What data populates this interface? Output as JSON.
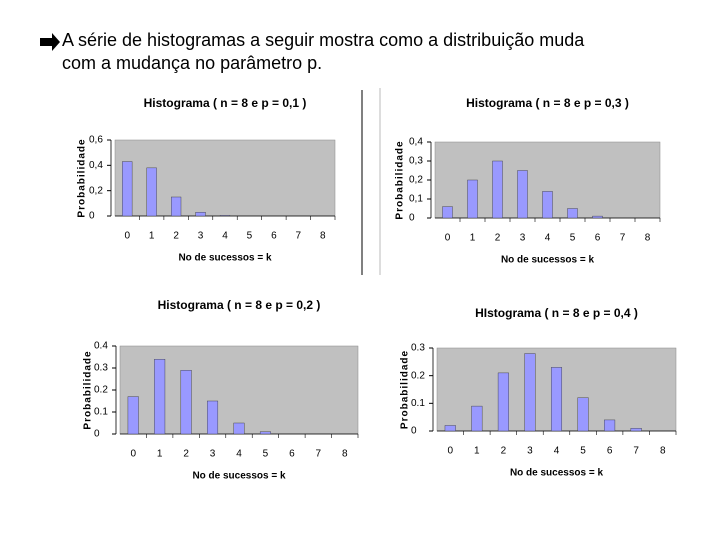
{
  "heading": [
    "A série de histogramas a seguir mostra como a distribuição muda",
    "com a mudança no parâmetro p."
  ],
  "chart_data": [
    {
      "type": "bar",
      "title": "Histograma ( n = 8 e p = 0,1 )",
      "x_label": "No de sucessos = k",
      "y_label": "Probabilidade",
      "categories": [
        "0",
        "1",
        "2",
        "3",
        "4",
        "5",
        "6",
        "7",
        "8"
      ],
      "values": [
        0.43,
        0.38,
        0.15,
        0.03,
        0.005,
        0,
        0,
        0,
        0
      ],
      "color": "#9999ff",
      "ylim": [
        0,
        0.6
      ],
      "yticks": [
        0,
        {
          "value": 0.2,
          "label": "0,2"
        },
        {
          "value": 0.4,
          "label": "0,4"
        },
        {
          "value": 0.6,
          "label": "0,6"
        }
      ],
      "grid": false
    },
    {
      "type": "bar",
      "title": "Histograma ( n = 8 e p = 0,3 )",
      "x_label": "No de sucessos = k",
      "y_label": "Probabilidade",
      "categories": [
        "0",
        "1",
        "2",
        "3",
        "4",
        "5",
        "6",
        "7",
        "8"
      ],
      "values": [
        0.06,
        0.2,
        0.3,
        0.25,
        0.14,
        0.05,
        0.01,
        0,
        0
      ],
      "color": "#9999ff",
      "ylim": [
        0,
        0.4
      ],
      "yticks": [
        0,
        {
          "value": 0.1,
          "label": "0,1"
        },
        {
          "value": 0.2,
          "label": "0,2"
        },
        {
          "value": 0.3,
          "label": "0,3"
        },
        {
          "value": 0.4,
          "label": "0,4"
        }
      ],
      "grid": false
    },
    {
      "type": "bar",
      "title": "Histograma ( n = 8 e p = 0,2 )",
      "x_label": "No de sucessos = k",
      "y_label": "Probabilidade",
      "categories": [
        "0",
        "1",
        "2",
        "3",
        "4",
        "5",
        "6",
        "7",
        "8"
      ],
      "values": [
        0.17,
        0.34,
        0.29,
        0.15,
        0.05,
        0.01,
        0,
        0,
        0
      ],
      "color": "#9999ff",
      "ylim": [
        0,
        0.4
      ],
      "yticks": [
        0,
        0.1,
        0.2,
        0.3,
        0.4
      ],
      "grid": false
    },
    {
      "type": "bar",
      "title": "HIstograma ( n = 8 e p = 0,4 )",
      "x_label": "No de sucessos = k",
      "y_label": "Probabilidade",
      "categories": [
        "0",
        "1",
        "2",
        "3",
        "4",
        "5",
        "6",
        "7",
        "8"
      ],
      "values": [
        0.02,
        0.09,
        0.21,
        0.28,
        0.23,
        0.12,
        0.04,
        0.01,
        0
      ],
      "color": "#9999ff",
      "ylim": [
        0,
        0.3
      ],
      "yticks": [
        0,
        0.1,
        0.2,
        0.3
      ],
      "grid": false
    }
  ]
}
